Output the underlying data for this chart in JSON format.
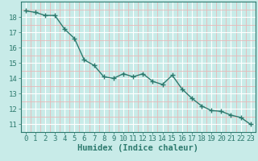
{
  "x": [
    0,
    1,
    2,
    3,
    4,
    5,
    6,
    7,
    8,
    9,
    10,
    11,
    12,
    13,
    14,
    15,
    16,
    17,
    18,
    19,
    20,
    21,
    22,
    23
  ],
  "y": [
    18.4,
    18.3,
    18.1,
    18.1,
    17.2,
    16.6,
    15.2,
    14.85,
    14.1,
    14.0,
    14.3,
    14.1,
    14.3,
    13.8,
    13.6,
    14.2,
    13.3,
    12.7,
    12.2,
    11.9,
    11.85,
    11.6,
    11.45,
    11.0
  ],
  "xlabel": "Humidex (Indice chaleur)",
  "xlim": [
    -0.5,
    23.5
  ],
  "ylim": [
    10.5,
    19.0
  ],
  "yticks": [
    11,
    12,
    13,
    14,
    15,
    16,
    17,
    18
  ],
  "xticks": [
    0,
    1,
    2,
    3,
    4,
    5,
    6,
    7,
    8,
    9,
    10,
    11,
    12,
    13,
    14,
    15,
    16,
    17,
    18,
    19,
    20,
    21,
    22,
    23
  ],
  "line_color": "#2d7a6e",
  "marker_color": "#2d7a6e",
  "bg_color": "#c8ebe8",
  "grid_major_color": "#ffffff",
  "grid_minor_color": "#e8b8b8",
  "axes_color": "#2d7a6e",
  "tick_label_color": "#2d7a6e",
  "xlabel_color": "#2d7a6e",
  "font_size_tick": 6.5,
  "font_size_xlabel": 7.5,
  "linewidth": 1.0,
  "markersize": 2.2
}
